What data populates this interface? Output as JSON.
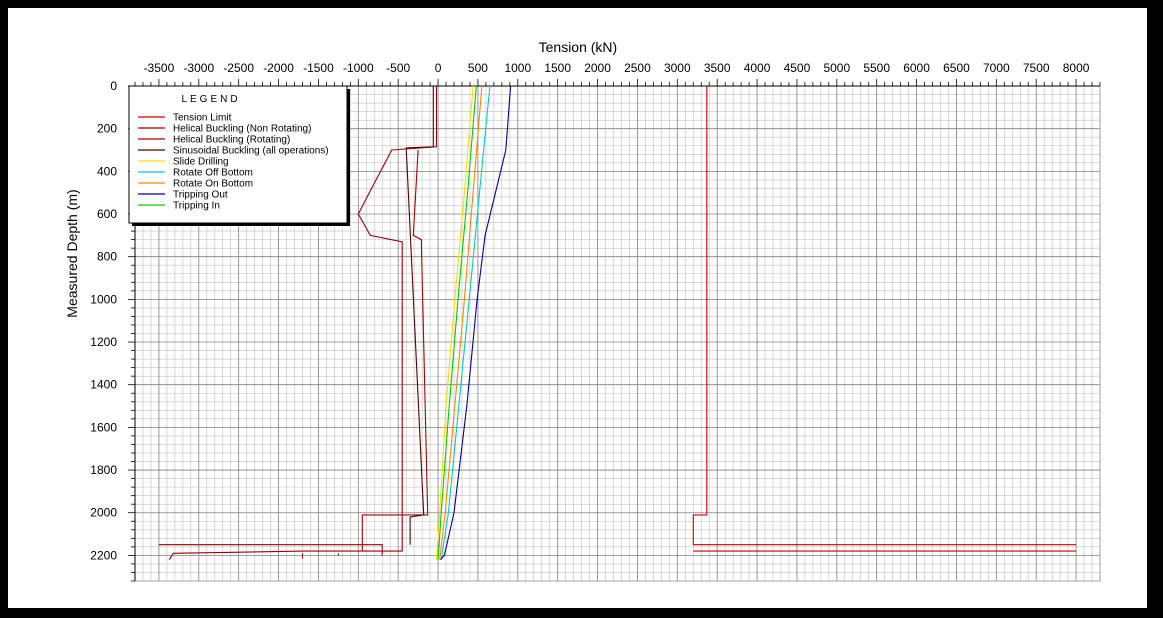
{
  "chart_data": {
    "type": "line",
    "title": "",
    "xlabel": "Tension (kN)",
    "ylabel": "Measured Depth (m)",
    "xlim": [
      -3800,
      8300
    ],
    "ylim": [
      0,
      2320
    ],
    "x_inverted": false,
    "y_inverted": true,
    "xticks": [
      -3500,
      -3000,
      -2500,
      -2000,
      -1500,
      -1000,
      -500,
      0,
      500,
      1000,
      1500,
      2000,
      2500,
      3000,
      3500,
      4000,
      4500,
      5000,
      5500,
      6000,
      6500,
      7000,
      7500,
      8000
    ],
    "yticks": [
      0,
      200,
      400,
      600,
      800,
      1000,
      1200,
      1400,
      1600,
      1800,
      2000,
      2200
    ],
    "grid": true,
    "legend_title": "LEGEND",
    "legend_position": "top-left",
    "series": [
      {
        "name": "Tension Limit",
        "color": "#cc0000",
        "segments": [
          [
            [
              3370,
              0
            ],
            [
              3370,
              2010
            ],
            [
              3200,
              2010
            ],
            [
              3200,
              2150
            ],
            [
              8000,
              2150
            ]
          ],
          [
            [
              3200,
              2180
            ],
            [
              8000,
              2180
            ]
          ]
        ]
      },
      {
        "name": "Helical Buckling (Non Rotating)",
        "color": "#990000",
        "segments": [
          [
            [
              -20,
              0
            ],
            [
              -20,
              285
            ],
            [
              -580,
              300
            ],
            [
              -820,
              470
            ],
            [
              -1000,
              600
            ],
            [
              -850,
              700
            ],
            [
              -450,
              730
            ],
            [
              -450,
              2180
            ],
            [
              -1200,
              2180
            ],
            [
              -1700,
              2180
            ],
            [
              -3320,
              2190
            ],
            [
              -3370,
              2220
            ]
          ],
          [
            [
              -3500,
              2150
            ],
            [
              -700,
              2150
            ],
            [
              -700,
              2200
            ]
          ]
        ]
      },
      {
        "name": "Helical Buckling (Rotating)",
        "color": "#aa0000",
        "segments": [
          [
            [
              -250,
              300
            ],
            [
              -310,
              700
            ],
            [
              -210,
              720
            ],
            [
              -130,
              2010
            ],
            [
              -950,
              2010
            ],
            [
              -950,
              2180
            ]
          ],
          [
            [
              -1250,
              2190
            ],
            [
              -1250,
              2200
            ]
          ],
          [
            [
              -1700,
              2190
            ],
            [
              -1700,
              2215
            ]
          ]
        ]
      },
      {
        "name": "Sinusoidal Buckling (all operations)",
        "color": "#550000",
        "segments": [
          [
            [
              -60,
              0
            ],
            [
              -60,
              285
            ],
            [
              -400,
              290
            ],
            [
              -180,
              2010
            ],
            [
              -350,
              2020
            ],
            [
              -350,
              2150
            ]
          ]
        ]
      },
      {
        "name": "Slide Drilling",
        "color": "#ffdd00",
        "points": [
          [
            440,
            0
          ],
          [
            330,
            500
          ],
          [
            210,
            1000
          ],
          [
            100,
            1500
          ],
          [
            20,
            2000
          ],
          [
            -20,
            2220
          ]
        ]
      },
      {
        "name": "Rotate Off Bottom",
        "color": "#00cccc",
        "points": [
          [
            650,
            0
          ],
          [
            520,
            500
          ],
          [
            390,
            1000
          ],
          [
            260,
            1500
          ],
          [
            130,
            2000
          ],
          [
            40,
            2220
          ]
        ]
      },
      {
        "name": "Rotate On Bottom",
        "color": "#ff8800",
        "points": [
          [
            550,
            0
          ],
          [
            440,
            500
          ],
          [
            330,
            1000
          ],
          [
            210,
            1500
          ],
          [
            90,
            2000
          ],
          [
            20,
            2220
          ]
        ]
      },
      {
        "name": "Tripping Out",
        "color": "#000099",
        "points": [
          [
            910,
            0
          ],
          [
            850,
            300
          ],
          [
            590,
            700
          ],
          [
            490,
            1000
          ],
          [
            360,
            1500
          ],
          [
            200,
            2000
          ],
          [
            80,
            2200
          ],
          [
            30,
            2220
          ]
        ]
      },
      {
        "name": "Tripping In",
        "color": "#00cc00",
        "points": [
          [
            480,
            0
          ],
          [
            370,
            500
          ],
          [
            250,
            1000
          ],
          [
            140,
            1500
          ],
          [
            40,
            2000
          ],
          [
            0,
            2220
          ]
        ]
      }
    ]
  }
}
